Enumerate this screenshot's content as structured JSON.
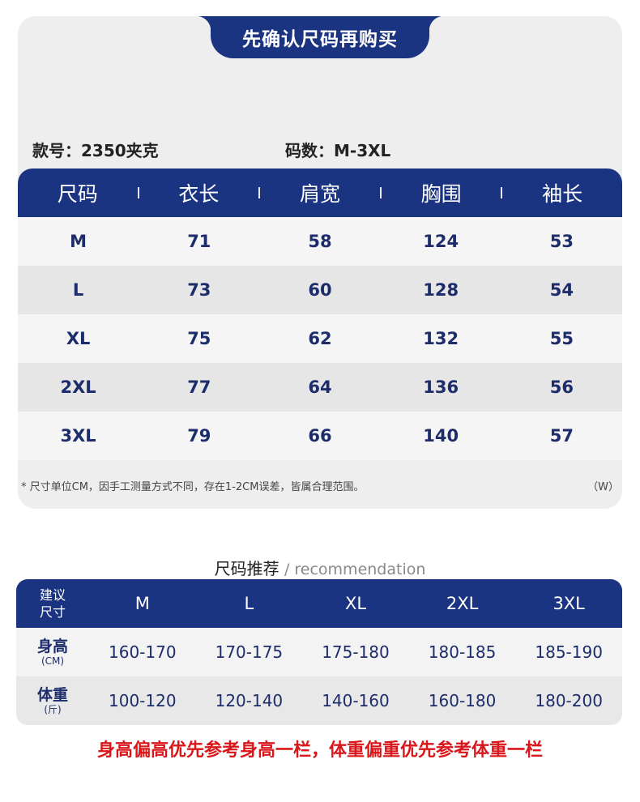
{
  "header": {
    "title": "先确认尺码再购买"
  },
  "meta": {
    "style_label": "款号：2350夹克",
    "size_label": "码数：M-3XL"
  },
  "size_chart": {
    "columns": [
      "尺码",
      "衣长",
      "肩宽",
      "胸围",
      "袖长"
    ],
    "rows": [
      [
        "M",
        "71",
        "58",
        "124",
        "53"
      ],
      [
        "L",
        "73",
        "60",
        "128",
        "54"
      ],
      [
        "XL",
        "75",
        "62",
        "132",
        "55"
      ],
      [
        "2XL",
        "77",
        "64",
        "136",
        "56"
      ],
      [
        "3XL",
        "79",
        "66",
        "140",
        "57"
      ]
    ],
    "note": "* 尺寸单位CM，因手工测量方式不同，存在1-2CM误差，皆属合理范围。",
    "note_right": "（W）"
  },
  "recommendation": {
    "title": "尺码推荐",
    "subtitle": "/ recommendation",
    "head_label_1": "建议",
    "head_label_2": "尺寸",
    "sizes": [
      "M",
      "L",
      "XL",
      "2XL",
      "3XL"
    ],
    "height_label": "身高",
    "height_unit": "(CM)",
    "heights": [
      "160-170",
      "170-175",
      "175-180",
      "180-185",
      "185-190"
    ],
    "weight_label": "体重",
    "weight_unit": "(斤)",
    "weights": [
      "100-120",
      "120-140",
      "140-160",
      "160-180",
      "180-200"
    ]
  },
  "tip": "身高偏高优先参考身高一栏，体重偏重优先参考体重一栏",
  "colors": {
    "navy": "#1b3481",
    "text_navy": "#1d2c6b",
    "red": "#d9161a"
  }
}
